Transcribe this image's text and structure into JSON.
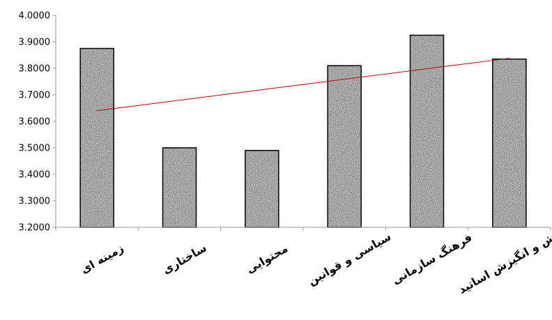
{
  "chart_data": {
    "type": "bar",
    "categories": [
      "زمینه ای",
      "ساختاری",
      "محتوایی",
      "سیاسی و قوانین",
      "فرهنگ سازمانی",
      "نگرش و انگیزش اساتید"
    ],
    "values": [
      3.875,
      3.5,
      3.49,
      3.81,
      3.925,
      3.835
    ],
    "ylim": [
      3.2,
      4.0
    ],
    "yticks": [
      "3.2000",
      "3.3000",
      "3.4000",
      "3.5000",
      "3.6000",
      "3.7000",
      "3.8000",
      "3.9000",
      "4.0000"
    ],
    "trendline": {
      "start": 3.64,
      "end": 3.838
    },
    "title": "",
    "xlabel": "",
    "ylabel": "",
    "grid": false,
    "legend": "none",
    "colors": {
      "bar_fill": "#8f8f8f",
      "bar_stroke": "#000000",
      "trend": "#c00000",
      "axis": "#999999"
    }
  }
}
